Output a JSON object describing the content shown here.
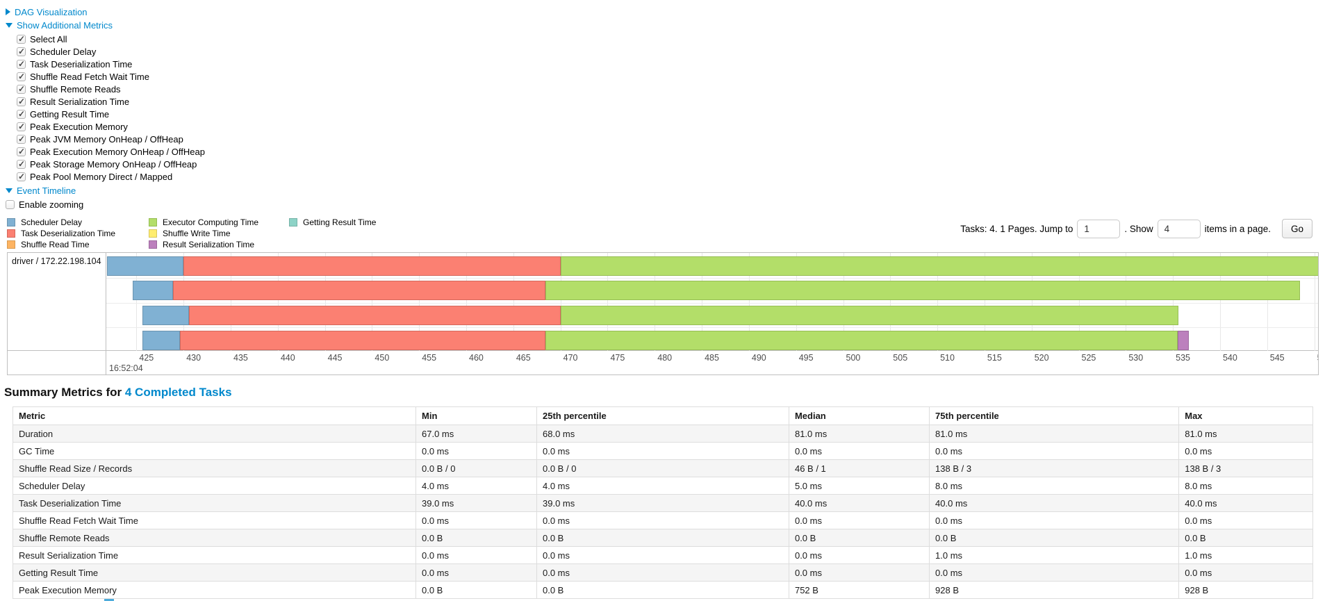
{
  "colors": {
    "link": "#0088cc",
    "segment": {
      "scheduler_delay": "#80B1D3",
      "task_deserialization": "#FB8072",
      "shuffle_read": "#FDB462",
      "executor_computing": "#B3DE69",
      "shuffle_write": "#FFED6F",
      "result_serialization": "#BC80BD",
      "getting_result": "#8DD3C7"
    },
    "segment_border": {
      "scheduler_delay": "#6b94b0",
      "task_deserialization": "#d4685c",
      "shuffle_read": "#d99a50",
      "executor_computing": "#96bd55",
      "shuffle_write": "#d9c85e",
      "result_serialization": "#9e6a9f",
      "getting_result": "#76b2a7"
    }
  },
  "sections": {
    "dag": {
      "label": "DAG Visualization",
      "collapsed": true
    },
    "additional_metrics": {
      "label": "Show Additional Metrics",
      "items": [
        {
          "label": "Select All",
          "checked": true
        },
        {
          "label": "Scheduler Delay",
          "checked": true
        },
        {
          "label": "Task Deserialization Time",
          "checked": true
        },
        {
          "label": "Shuffle Read Fetch Wait Time",
          "checked": true
        },
        {
          "label": "Shuffle Remote Reads",
          "checked": true
        },
        {
          "label": "Result Serialization Time",
          "checked": true
        },
        {
          "label": "Getting Result Time",
          "checked": true
        },
        {
          "label": "Peak Execution Memory",
          "checked": true
        },
        {
          "label": "Peak JVM Memory OnHeap / OffHeap",
          "checked": true
        },
        {
          "label": "Peak Execution Memory OnHeap / OffHeap",
          "checked": true
        },
        {
          "label": "Peak Storage Memory OnHeap / OffHeap",
          "checked": true
        },
        {
          "label": "Peak Pool Memory Direct / Mapped",
          "checked": true
        }
      ]
    },
    "event_timeline": {
      "label": "Event Timeline"
    },
    "enable_zooming": {
      "label": "Enable zooming",
      "checked": false
    }
  },
  "pagination": {
    "prefix": "Tasks: 4. 1 Pages. Jump to",
    "jump_value": "1",
    "mid": ". Show",
    "show_value": "4",
    "suffix": "items in a page.",
    "go_label": "Go"
  },
  "chart_data": {
    "type": "timeline",
    "group": "driver / 172.22.198.104",
    "x_unit": "milliseconds within second shown by major label",
    "x_min": 421.8,
    "x_max": 550.4,
    "tick_start": 425,
    "tick_end": 550,
    "tick_step": 5,
    "major_label": "16:52:04",
    "legend_columns": [
      [
        {
          "key": "scheduler_delay",
          "label": "Scheduler Delay"
        },
        {
          "key": "task_deserialization",
          "label": "Task Deserialization Time"
        },
        {
          "key": "shuffle_read",
          "label": "Shuffle Read Time"
        }
      ],
      [
        {
          "key": "executor_computing",
          "label": "Executor Computing Time"
        },
        {
          "key": "shuffle_write",
          "label": "Shuffle Write Time"
        },
        {
          "key": "result_serialization",
          "label": "Result Serialization Time"
        }
      ],
      [
        {
          "key": "getting_result",
          "label": "Getting Result Time"
        }
      ]
    ],
    "tasks": [
      {
        "name": "task-row-1",
        "segments": [
          {
            "key": "scheduler_delay",
            "start": 421.9,
            "end": 430.0
          },
          {
            "key": "task_deserialization",
            "start": 430.0,
            "end": 470.0
          },
          {
            "key": "executor_computing",
            "start": 470.0,
            "end": 551.0
          }
        ]
      },
      {
        "name": "task-row-2",
        "segments": [
          {
            "key": "scheduler_delay",
            "start": 424.6,
            "end": 428.9
          },
          {
            "key": "task_deserialization",
            "start": 428.9,
            "end": 468.4
          },
          {
            "key": "executor_computing",
            "start": 468.4,
            "end": 548.5
          }
        ]
      },
      {
        "name": "task-row-3",
        "segments": [
          {
            "key": "scheduler_delay",
            "start": 425.6,
            "end": 430.6
          },
          {
            "key": "task_deserialization",
            "start": 430.6,
            "end": 470.0
          },
          {
            "key": "executor_computing",
            "start": 470.0,
            "end": 535.6
          }
        ]
      },
      {
        "name": "task-row-4",
        "segments": [
          {
            "key": "scheduler_delay",
            "start": 425.6,
            "end": 429.6
          },
          {
            "key": "task_deserialization",
            "start": 429.6,
            "end": 468.4
          },
          {
            "key": "executor_computing",
            "start": 468.4,
            "end": 535.5
          },
          {
            "key": "result_serialization",
            "start": 535.5,
            "end": 536.7
          }
        ]
      }
    ]
  },
  "summary": {
    "title_prefix": "Summary Metrics for",
    "title_link": "4 Completed Tasks",
    "table": {
      "headers": [
        "Metric",
        "Min",
        "25th percentile",
        "Median",
        "75th percentile",
        "Max"
      ],
      "rows": [
        [
          "Duration",
          "67.0 ms",
          "68.0 ms",
          "81.0 ms",
          "81.0 ms",
          "81.0 ms"
        ],
        [
          "GC Time",
          "0.0 ms",
          "0.0 ms",
          "0.0 ms",
          "0.0 ms",
          "0.0 ms"
        ],
        [
          "Shuffle Read Size / Records",
          "0.0 B / 0",
          "0.0 B / 0",
          "46 B / 1",
          "138 B / 3",
          "138 B / 3"
        ],
        [
          "Scheduler Delay",
          "4.0 ms",
          "4.0 ms",
          "5.0 ms",
          "8.0 ms",
          "8.0 ms"
        ],
        [
          "Task Deserialization Time",
          "39.0 ms",
          "39.0 ms",
          "40.0 ms",
          "40.0 ms",
          "40.0 ms"
        ],
        [
          "Shuffle Read Fetch Wait Time",
          "0.0 ms",
          "0.0 ms",
          "0.0 ms",
          "0.0 ms",
          "0.0 ms"
        ],
        [
          "Shuffle Remote Reads",
          "0.0 B",
          "0.0 B",
          "0.0 B",
          "0.0 B",
          "0.0 B"
        ],
        [
          "Result Serialization Time",
          "0.0 ms",
          "0.0 ms",
          "0.0 ms",
          "1.0 ms",
          "1.0 ms"
        ],
        [
          "Getting Result Time",
          "0.0 ms",
          "0.0 ms",
          "0.0 ms",
          "0.0 ms",
          "0.0 ms"
        ],
        [
          "Peak Execution Memory",
          "0.0 B",
          "0.0 B",
          "752 B",
          "928 B",
          "928 B"
        ]
      ]
    }
  }
}
